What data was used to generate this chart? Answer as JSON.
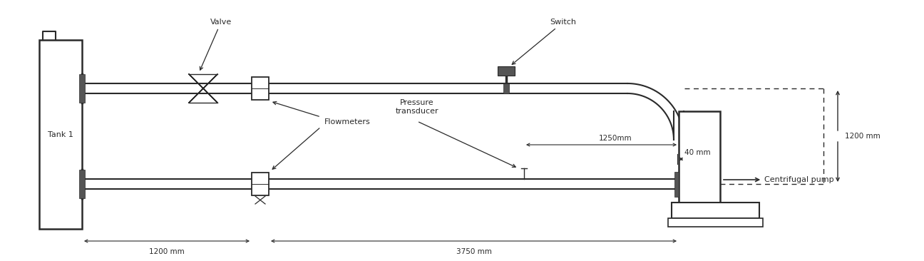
{
  "line_color": "#2a2a2a",
  "figsize": [
    12.96,
    3.66
  ],
  "dpi": 100,
  "labels": {
    "tank": "Tank 1",
    "valve": "Valve",
    "switch": "Switch",
    "flowmeters": "Flowmeters",
    "pressure": "Pressure\ntransducer",
    "dim1200_bottom": "1200 mm",
    "dim3750": "3750 mm",
    "dim1250": "1250mm",
    "dim1200_right": "1200 mm",
    "dim40": "40 mm",
    "centrifugal": "Centrifugal pump"
  },
  "xlim": [
    0,
    12.96
  ],
  "ylim": [
    0,
    3.66
  ]
}
